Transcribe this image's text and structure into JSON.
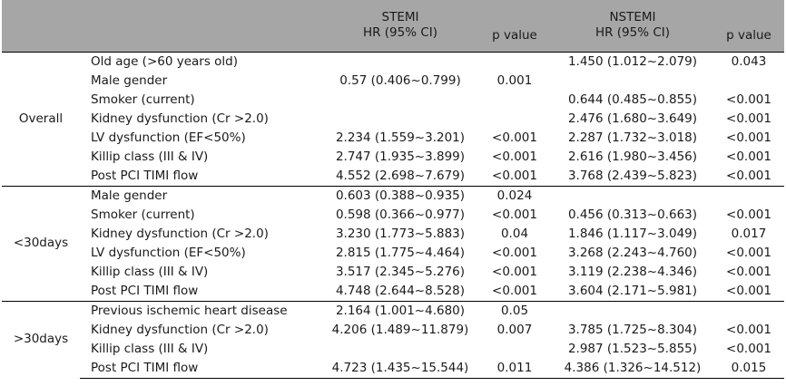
{
  "header": {
    "stemi_title": "STEMI",
    "stemi_hr": "HR (95% CI)",
    "stemi_p": "p value",
    "nstemi_title": "NSTEMI",
    "nstemi_hr": "HR (95% CI)",
    "nstemi_p": "p value"
  },
  "groups": [
    {
      "label": "Overall",
      "rows": [
        {
          "variable": "Old age (>60 years old)",
          "stemi_hr": "",
          "stemi_p": "",
          "nstemi_hr": "1.450 (1.012~2.079)",
          "nstemi_p": "0.043"
        },
        {
          "variable": "Male gender",
          "stemi_hr": "0.57 (0.406~0.799)",
          "stemi_p": "0.001",
          "nstemi_hr": "",
          "nstemi_p": ""
        },
        {
          "variable": "Smoker (current)",
          "stemi_hr": "",
          "stemi_p": "",
          "nstemi_hr": "0.644 (0.485~0.855)",
          "nstemi_p": "<0.001"
        },
        {
          "variable": "Kidney dysfunction (Cr >2.0)",
          "stemi_hr": "",
          "stemi_p": "",
          "nstemi_hr": "2.476 (1.680~3.649)",
          "nstemi_p": "<0.001"
        },
        {
          "variable": "LV dysfunction (EF<50%)",
          "stemi_hr": "2.234 (1.559~3.201)",
          "stemi_p": "<0.001",
          "nstemi_hr": "2.287 (1.732~3.018)",
          "nstemi_p": "<0.001"
        },
        {
          "variable": "Killip class (III & IV)",
          "stemi_hr": "2.747 (1.935~3.899)",
          "stemi_p": "<0.001",
          "nstemi_hr": "2.616 (1.980~3.456)",
          "nstemi_p": "<0.001"
        },
        {
          "variable": "Post PCI TIMI flow",
          "stemi_hr": "4.552 (2.698~7.679)",
          "stemi_p": "<0.001",
          "nstemi_hr": "3.768 (2.439~5.823)",
          "nstemi_p": "<0.001"
        }
      ]
    },
    {
      "label": "<30days",
      "rows": [
        {
          "variable": "Male gender",
          "stemi_hr": "0.603 (0.388~0.935)",
          "stemi_p": "0.024",
          "nstemi_hr": "",
          "nstemi_p": ""
        },
        {
          "variable": "Smoker (current)",
          "stemi_hr": "0.598 (0.366~0.977)",
          "stemi_p": "<0.001",
          "nstemi_hr": "0.456 (0.313~0.663)",
          "nstemi_p": "<0.001"
        },
        {
          "variable": "Kidney dysfunction (Cr >2.0)",
          "stemi_hr": "3.230 (1.773~5.883)",
          "stemi_p": "0.04",
          "nstemi_hr": "1.846 (1.117~3.049)",
          "nstemi_p": "0.017"
        },
        {
          "variable": "LV dysfunction (EF<50%)",
          "stemi_hr": "2.815 (1.775~4.464)",
          "stemi_p": "<0.001",
          "nstemi_hr": "3.268 (2.243~4.760)",
          "nstemi_p": "<0.001"
        },
        {
          "variable": "Killip class (III & IV)",
          "stemi_hr": "3.517 (2.345~5.276)",
          "stemi_p": "<0.001",
          "nstemi_hr": "3.119 (2.238~4.346)",
          "nstemi_p": "<0.001"
        },
        {
          "variable": "Post PCI TIMI flow",
          "stemi_hr": "4.748 (2.644~8.528)",
          "stemi_p": "<0.001",
          "nstemi_hr": "3.604 (2.171~5.981)",
          "nstemi_p": "<0.001"
        }
      ]
    },
    {
      "label": ">30days",
      "rows": [
        {
          "variable": "Previous ischemic heart disease",
          "stemi_hr": "2.164 (1.001~4.680)",
          "stemi_p": "0.05",
          "nstemi_hr": "",
          "nstemi_p": ""
        },
        {
          "variable": "Kidney dysfunction (Cr >2.0)",
          "stemi_hr": "4.206 (1.489~11.879)",
          "stemi_p": "0.007",
          "nstemi_hr": "3.785 (1.725~8.304)",
          "nstemi_p": "<0.001"
        },
        {
          "variable": "Killip class (III & IV)",
          "stemi_hr": "",
          "stemi_p": "",
          "nstemi_hr": "2.987 (1.523~5.855)",
          "nstemi_p": "<0.001"
        },
        {
          "variable": "Post PCI TIMI flow",
          "stemi_hr": "4.723 (1.435~15.544)",
          "stemi_p": "0.011",
          "nstemi_hr": "4.386 (1.326~14.512)",
          "nstemi_p": "0.015"
        }
      ]
    }
  ]
}
